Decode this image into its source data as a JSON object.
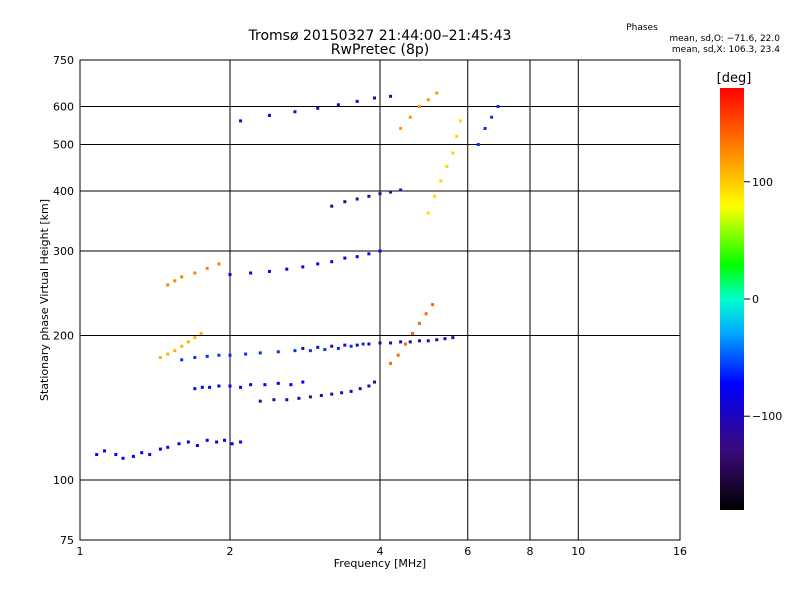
{
  "chart_data": {
    "type": "scatter",
    "title": "Tromsø 20150327 21:44:00–21:45:43",
    "subtitle": "RwPretec (8p)",
    "xlabel": "Frequency [MHz]",
    "ylabel": "Stationary phase Virtual Height [km]",
    "x_scale": "log",
    "y_scale": "log",
    "xlim": [
      1,
      16
    ],
    "ylim": [
      75,
      750
    ],
    "x_ticks": [
      "1",
      "2",
      "4",
      "6",
      "8",
      "10",
      "16"
    ],
    "x_tick_values": [
      1,
      2,
      4,
      6,
      8,
      10,
      16
    ],
    "y_ticks": [
      "75",
      "100",
      "200",
      "300",
      "400",
      "500",
      "600",
      "750"
    ],
    "y_tick_values": [
      75,
      100,
      200,
      300,
      400,
      500,
      600,
      750
    ],
    "grid": true,
    "stats": {
      "header": "Phases",
      "line_o": "mean, sd,O: −71.6, 22.0",
      "line_x": "mean, sd,X: 106.3, 23.4"
    },
    "colorbar": {
      "label": "[deg]",
      "ticks": [
        "100",
        "0",
        "−100"
      ],
      "tick_values": [
        100,
        0,
        -100
      ],
      "range": [
        -180,
        180
      ]
    },
    "point_color_by": "phase (deg)",
    "series": [
      {
        "x": [
          1.08,
          1.12,
          1.18,
          1.22,
          1.28,
          1.33,
          1.38,
          1.45,
          1.5,
          1.58,
          1.65,
          1.72,
          1.8,
          1.88,
          1.95,
          2.02,
          2.1
        ],
        "y": [
          113,
          115,
          113,
          111,
          112,
          114,
          113,
          116,
          117,
          119,
          120,
          118,
          121,
          120,
          121,
          119,
          120
        ],
        "phase": [
          -80
        ]
      },
      {
        "x": [
          1.7,
          1.76,
          1.82,
          1.9,
          2.0,
          2.1,
          2.2,
          2.35,
          2.5,
          2.65,
          2.8
        ],
        "y": [
          155,
          156,
          156,
          157,
          157,
          156,
          158,
          158,
          159,
          158,
          160
        ],
        "phase": [
          -75
        ]
      },
      {
        "x": [
          2.3,
          2.45,
          2.6,
          2.75,
          2.9,
          3.05,
          3.2,
          3.35,
          3.5,
          3.65,
          3.8,
          3.9
        ],
        "y": [
          146,
          147,
          147,
          148,
          149,
          150,
          151,
          152,
          153,
          155,
          157,
          160
        ],
        "phase": [
          -110
        ]
      },
      {
        "x": [
          1.6,
          1.7,
          1.8,
          1.9,
          2.0,
          2.15,
          2.3,
          2.5,
          2.7,
          2.9,
          3.1,
          3.3,
          3.5,
          3.7
        ],
        "y": [
          178,
          180,
          181,
          182,
          182,
          183,
          184,
          185,
          186,
          186,
          187,
          188,
          190,
          192
        ],
        "phase": [
          -60
        ]
      },
      {
        "x": [
          2.8,
          3.0,
          3.2,
          3.4,
          3.6,
          3.8,
          4.0,
          4.2,
          4.4,
          4.6,
          4.8,
          5.0,
          5.2,
          5.4,
          5.6
        ],
        "y": [
          188,
          189,
          190,
          191,
          191,
          192,
          193,
          193,
          194,
          194,
          195,
          195,
          196,
          197,
          198
        ],
        "phase": [
          -105
        ]
      },
      {
        "x": [
          2.0,
          2.2,
          2.4,
          2.6,
          2.8,
          3.0,
          3.2,
          3.4,
          3.6,
          3.8,
          4.0
        ],
        "y": [
          268,
          270,
          272,
          275,
          278,
          282,
          285,
          290,
          292,
          296,
          300
        ],
        "phase": [
          -85
        ]
      },
      {
        "x": [
          3.2,
          3.4,
          3.6,
          3.8,
          4.0,
          4.2,
          4.4
        ],
        "y": [
          372,
          380,
          385,
          390,
          395,
          398,
          402
        ],
        "phase": [
          -115
        ]
      },
      {
        "x": [
          2.1,
          2.4,
          2.7,
          3.0,
          3.3,
          3.6,
          3.9,
          4.2
        ],
        "y": [
          560,
          575,
          585,
          595,
          605,
          615,
          625,
          630
        ],
        "phase": [
          -95
        ]
      },
      {
        "x": [
          4.2,
          4.35,
          4.5,
          4.65,
          4.8,
          4.95,
          5.1
        ],
        "y": [
          175,
          182,
          192,
          202,
          212,
          222,
          232
        ],
        "phase": [
          140
        ]
      },
      {
        "x": [
          1.45,
          1.5,
          1.55,
          1.6,
          1.65,
          1.7,
          1.75
        ],
        "y": [
          180,
          183,
          186,
          190,
          194,
          198,
          202
        ],
        "phase": [
          110
        ]
      },
      {
        "x": [
          1.5,
          1.55,
          1.6,
          1.7,
          1.8,
          1.9
        ],
        "y": [
          255,
          260,
          265,
          270,
          276,
          282
        ],
        "phase": [
          130
        ]
      },
      {
        "x": [
          5.0,
          5.15,
          5.3,
          5.45,
          5.6,
          5.7,
          5.8
        ],
        "y": [
          360,
          390,
          420,
          450,
          480,
          520,
          560
        ],
        "phase": [
          95
        ]
      },
      {
        "x": [
          4.4,
          4.6,
          4.8,
          5.0,
          5.2
        ],
        "y": [
          540,
          570,
          600,
          620,
          640
        ],
        "phase": [
          120
        ]
      },
      {
        "x": [
          6.3,
          6.5,
          6.7,
          6.9
        ],
        "y": [
          500,
          540,
          570,
          600
        ],
        "phase": [
          -60
        ]
      }
    ]
  }
}
